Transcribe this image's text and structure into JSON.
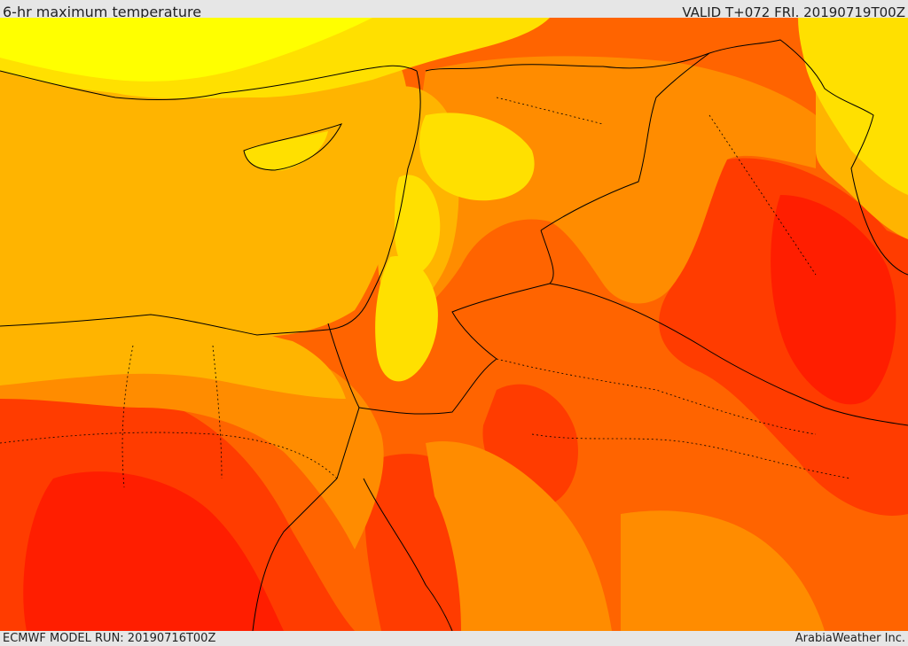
{
  "header": {
    "title": "6-hr maximum temperature",
    "valid": "VALID T+072 FRI. 20190719T00Z"
  },
  "footer": {
    "model_run": "ECMWF MODEL RUN: 20190716T00Z",
    "credit": "ArabiaWeather Inc."
  },
  "map": {
    "region": "Eastern Mediterranean and Middle East",
    "colors": {
      "yellow": "#ffff00",
      "light_yellow_orange": "#ffe000",
      "amber": "#ffb400",
      "orange": "#ff8c00",
      "dark_orange": "#ff6400",
      "red_orange": "#ff3c00",
      "red": "#ff1e00",
      "border": "#000000"
    }
  }
}
